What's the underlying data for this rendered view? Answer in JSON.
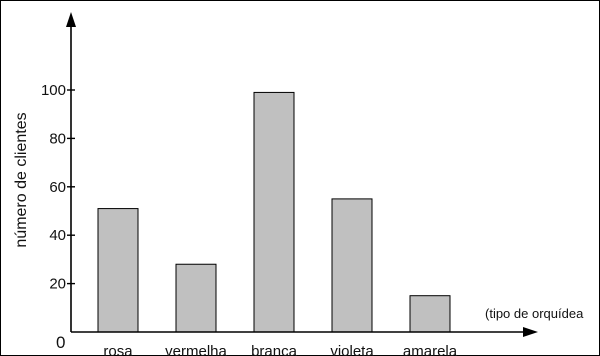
{
  "chart_data": {
    "type": "bar",
    "title": "",
    "ylabel": "número de clientes",
    "xlabel": "(tipo de orquídea",
    "zero_label": "0",
    "categories": [
      "rosa",
      "vermelha",
      "branca",
      "violeta",
      "amarela"
    ],
    "values": [
      51,
      28,
      99,
      55,
      15
    ],
    "y_ticks": [
      20,
      40,
      60,
      80,
      100
    ],
    "y_tick_labels": [
      "20",
      "40",
      "60",
      "80",
      "100"
    ],
    "ylim": [
      0,
      100
    ],
    "grid": false,
    "bar_color": "#c0c0c0"
  }
}
